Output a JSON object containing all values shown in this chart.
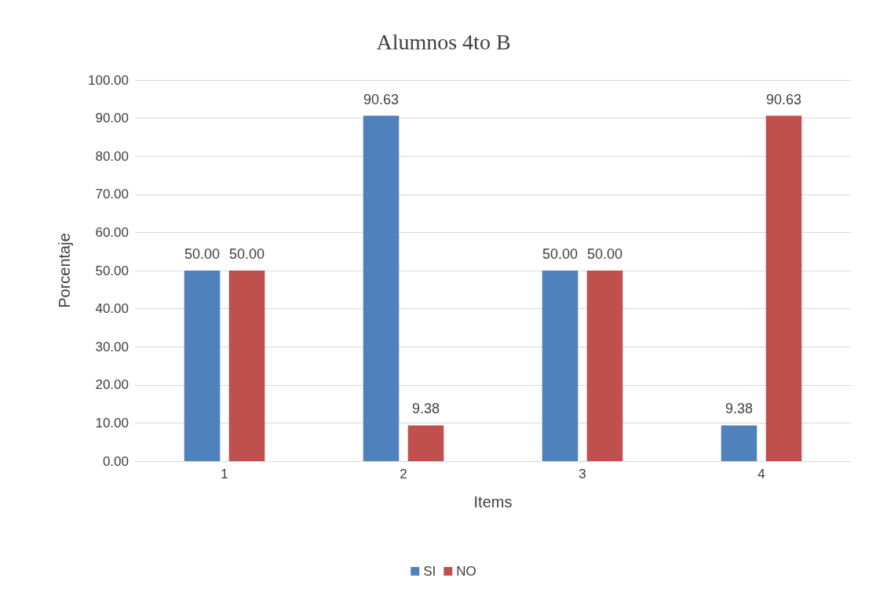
{
  "chart_data": {
    "type": "bar",
    "title": "Alumnos 4to B",
    "xlabel": "Items",
    "ylabel": "Porcentaje",
    "categories": [
      "1",
      "2",
      "3",
      "4"
    ],
    "series": [
      {
        "name": "SI",
        "color": "#4f81bd",
        "values": [
          50.0,
          90.63,
          50.0,
          9.38
        ],
        "value_labels": [
          "50.00",
          "90.63",
          "50.00",
          "9.38"
        ]
      },
      {
        "name": "NO",
        "color": "#c0504d",
        "values": [
          50.0,
          9.38,
          50.0,
          90.63
        ],
        "value_labels": [
          "50.00",
          "9.38",
          "50.00",
          "90.63"
        ]
      }
    ],
    "ylim": [
      0,
      100
    ],
    "yticks": [
      {
        "value": 0,
        "label": "0.00"
      },
      {
        "value": 10,
        "label": "10.00"
      },
      {
        "value": 20,
        "label": "20.00"
      },
      {
        "value": 30,
        "label": "30.00"
      },
      {
        "value": 40,
        "label": "40.00"
      },
      {
        "value": 50,
        "label": "50.00"
      },
      {
        "value": 60,
        "label": "60.00"
      },
      {
        "value": 70,
        "label": "70.00"
      },
      {
        "value": 80,
        "label": "80.00"
      },
      {
        "value": 90,
        "label": "90.00"
      },
      {
        "value": 100,
        "label": "100.00"
      }
    ],
    "grid": "y",
    "legend": "bottom"
  }
}
